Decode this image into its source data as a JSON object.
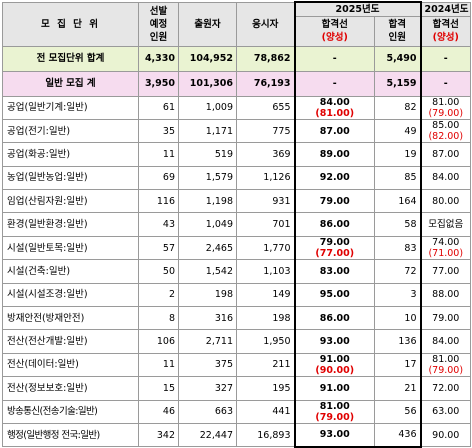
{
  "headers": {
    "category": "모 집 단 위",
    "selection": [
      "선발",
      "예정",
      "인원"
    ],
    "applicants": "출원자",
    "examinees": "응시자",
    "year2025": "2025년도",
    "passline": "합격선",
    "passline_note": "(양성)",
    "pass_count": [
      "합격",
      "인원"
    ],
    "year2024": "2024년도"
  },
  "totals": [
    {
      "label": "전 모집단위 합계",
      "selection": "4,330",
      "applicants": "104,952",
      "examinees": "78,862",
      "pass25": "-",
      "pass25_red": "",
      "pass_count": "5,490",
      "pass24": "-",
      "pass24_red": ""
    },
    {
      "label": "일반 모집 계",
      "selection": "3,950",
      "applicants": "101,306",
      "examinees": "76,193",
      "pass25": "-",
      "pass25_red": "",
      "pass_count": "5,159",
      "pass24": "-",
      "pass24_red": ""
    }
  ],
  "rows": [
    {
      "unit": "공업(일반기계:일반)",
      "selection": "61",
      "applicants": "1,009",
      "examinees": "655",
      "pass25": "84.00",
      "pass25_red": "(81.00)",
      "pass_count": "82",
      "pass24": "81.00",
      "pass24_red": "(79.00)"
    },
    {
      "unit": "공업(전기:일반)",
      "selection": "35",
      "applicants": "1,171",
      "examinees": "775",
      "pass25": "87.00",
      "pass25_red": "",
      "pass_count": "49",
      "pass24": "85.00",
      "pass24_red": "(82.00)"
    },
    {
      "unit": "공업(화공:일반)",
      "selection": "11",
      "applicants": "519",
      "examinees": "369",
      "pass25": "89.00",
      "pass25_red": "",
      "pass_count": "19",
      "pass24": "87.00",
      "pass24_red": ""
    },
    {
      "unit": "농업(일반농업:일반)",
      "selection": "69",
      "applicants": "1,579",
      "examinees": "1,126",
      "pass25": "92.00",
      "pass25_red": "",
      "pass_count": "85",
      "pass24": "84.00",
      "pass24_red": ""
    },
    {
      "unit": "임업(산림자원:일반)",
      "selection": "116",
      "applicants": "1,198",
      "examinees": "931",
      "pass25": "79.00",
      "pass25_red": "",
      "pass_count": "164",
      "pass24": "80.00",
      "pass24_red": ""
    },
    {
      "unit": "환경(일반환경:일반)",
      "selection": "43",
      "applicants": "1,049",
      "examinees": "701",
      "pass25": "86.00",
      "pass25_red": "",
      "pass_count": "58",
      "pass24": "모집없음",
      "pass24_red": ""
    },
    {
      "unit": "시설(일반토목:일반)",
      "selection": "57",
      "applicants": "2,465",
      "examinees": "1,770",
      "pass25": "79.00",
      "pass25_red": "(77.00)",
      "pass_count": "83",
      "pass24": "74.00",
      "pass24_red": "(71.00)"
    },
    {
      "unit": "시설(건축:일반)",
      "selection": "50",
      "applicants": "1,542",
      "examinees": "1,103",
      "pass25": "83.00",
      "pass25_red": "",
      "pass_count": "72",
      "pass24": "77.00",
      "pass24_red": ""
    },
    {
      "unit": "시설(시설조경:일반)",
      "selection": "2",
      "applicants": "198",
      "examinees": "149",
      "pass25": "95.00",
      "pass25_red": "",
      "pass_count": "3",
      "pass24": "88.00",
      "pass24_red": ""
    },
    {
      "unit": "방재안전(방재안전)",
      "selection": "8",
      "applicants": "316",
      "examinees": "198",
      "pass25": "86.00",
      "pass25_red": "",
      "pass_count": "10",
      "pass24": "79.00",
      "pass24_red": ""
    },
    {
      "unit": "전산(전산개발:일반)",
      "selection": "106",
      "applicants": "2,711",
      "examinees": "1,950",
      "pass25": "93.00",
      "pass25_red": "",
      "pass_count": "136",
      "pass24": "84.00",
      "pass24_red": ""
    },
    {
      "unit": "전산(데이터:일반)",
      "selection": "11",
      "applicants": "375",
      "examinees": "211",
      "pass25": "91.00",
      "pass25_red": "(90.00)",
      "pass_count": "17",
      "pass24": "81.00",
      "pass24_red": "(79.00)"
    },
    {
      "unit": "전산(정보보호:일반)",
      "selection": "15",
      "applicants": "327",
      "examinees": "195",
      "pass25": "91.00",
      "pass25_red": "",
      "pass_count": "21",
      "pass24": "72.00",
      "pass24_red": ""
    },
    {
      "unit": "방송통신(전송기술:일반)",
      "selection": "46",
      "applicants": "663",
      "examinees": "441",
      "pass25": "81.00",
      "pass25_red": "(79.00)",
      "pass_count": "56",
      "pass24": "63.00",
      "pass24_red": ""
    },
    {
      "unit": "행정(일반행정 전국:일반)",
      "selection": "342",
      "applicants": "22,447",
      "examinees": "16,893",
      "pass25": "93.00",
      "pass25_red": "",
      "pass_count": "436",
      "pass24": "90.00",
      "pass24_red": ""
    }
  ]
}
